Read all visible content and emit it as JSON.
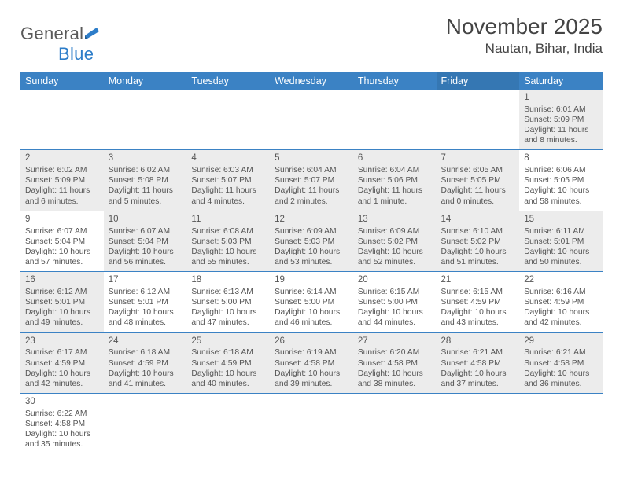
{
  "logo": {
    "name": "General",
    "nameBlue": "Blue"
  },
  "title": "November 2025",
  "location": "Nautan, Bihar, India",
  "colors": {
    "headerBg": "#3b82c4",
    "headerBgAlt": "#3577b3",
    "altCellBg": "#ececec",
    "rowBorder": "#3b82c4",
    "text": "#555555",
    "titleText": "#444444",
    "logoGray": "#5a5a5a",
    "logoBlue": "#2d7dc9"
  },
  "weekdays": [
    "Sunday",
    "Monday",
    "Tuesday",
    "Wednesday",
    "Thursday",
    "Friday",
    "Saturday"
  ],
  "weeks": [
    [
      {
        "empty": true
      },
      {
        "empty": true
      },
      {
        "empty": true
      },
      {
        "empty": true
      },
      {
        "empty": true
      },
      {
        "empty": true
      },
      {
        "day": "1",
        "alt": true,
        "sunrise": "Sunrise: 6:01 AM",
        "sunset": "Sunset: 5:09 PM",
        "daylight": "Daylight: 11 hours and 8 minutes."
      }
    ],
    [
      {
        "day": "2",
        "alt": true,
        "sunrise": "Sunrise: 6:02 AM",
        "sunset": "Sunset: 5:09 PM",
        "daylight": "Daylight: 11 hours and 6 minutes."
      },
      {
        "day": "3",
        "alt": true,
        "sunrise": "Sunrise: 6:02 AM",
        "sunset": "Sunset: 5:08 PM",
        "daylight": "Daylight: 11 hours and 5 minutes."
      },
      {
        "day": "4",
        "alt": true,
        "sunrise": "Sunrise: 6:03 AM",
        "sunset": "Sunset: 5:07 PM",
        "daylight": "Daylight: 11 hours and 4 minutes."
      },
      {
        "day": "5",
        "alt": true,
        "sunrise": "Sunrise: 6:04 AM",
        "sunset": "Sunset: 5:07 PM",
        "daylight": "Daylight: 11 hours and 2 minutes."
      },
      {
        "day": "6",
        "alt": true,
        "sunrise": "Sunrise: 6:04 AM",
        "sunset": "Sunset: 5:06 PM",
        "daylight": "Daylight: 11 hours and 1 minute."
      },
      {
        "day": "7",
        "alt": true,
        "sunrise": "Sunrise: 6:05 AM",
        "sunset": "Sunset: 5:05 PM",
        "daylight": "Daylight: 11 hours and 0 minutes."
      },
      {
        "day": "8",
        "alt": false,
        "sunrise": "Sunrise: 6:06 AM",
        "sunset": "Sunset: 5:05 PM",
        "daylight": "Daylight: 10 hours and 58 minutes."
      }
    ],
    [
      {
        "day": "9",
        "alt": false,
        "sunrise": "Sunrise: 6:07 AM",
        "sunset": "Sunset: 5:04 PM",
        "daylight": "Daylight: 10 hours and 57 minutes."
      },
      {
        "day": "10",
        "alt": true,
        "sunrise": "Sunrise: 6:07 AM",
        "sunset": "Sunset: 5:04 PM",
        "daylight": "Daylight: 10 hours and 56 minutes."
      },
      {
        "day": "11",
        "alt": true,
        "sunrise": "Sunrise: 6:08 AM",
        "sunset": "Sunset: 5:03 PM",
        "daylight": "Daylight: 10 hours and 55 minutes."
      },
      {
        "day": "12",
        "alt": true,
        "sunrise": "Sunrise: 6:09 AM",
        "sunset": "Sunset: 5:03 PM",
        "daylight": "Daylight: 10 hours and 53 minutes."
      },
      {
        "day": "13",
        "alt": true,
        "sunrise": "Sunrise: 6:09 AM",
        "sunset": "Sunset: 5:02 PM",
        "daylight": "Daylight: 10 hours and 52 minutes."
      },
      {
        "day": "14",
        "alt": true,
        "sunrise": "Sunrise: 6:10 AM",
        "sunset": "Sunset: 5:02 PM",
        "daylight": "Daylight: 10 hours and 51 minutes."
      },
      {
        "day": "15",
        "alt": true,
        "sunrise": "Sunrise: 6:11 AM",
        "sunset": "Sunset: 5:01 PM",
        "daylight": "Daylight: 10 hours and 50 minutes."
      }
    ],
    [
      {
        "day": "16",
        "alt": true,
        "sunrise": "Sunrise: 6:12 AM",
        "sunset": "Sunset: 5:01 PM",
        "daylight": "Daylight: 10 hours and 49 minutes."
      },
      {
        "day": "17",
        "alt": false,
        "sunrise": "Sunrise: 6:12 AM",
        "sunset": "Sunset: 5:01 PM",
        "daylight": "Daylight: 10 hours and 48 minutes."
      },
      {
        "day": "18",
        "alt": false,
        "sunrise": "Sunrise: 6:13 AM",
        "sunset": "Sunset: 5:00 PM",
        "daylight": "Daylight: 10 hours and 47 minutes."
      },
      {
        "day": "19",
        "alt": false,
        "sunrise": "Sunrise: 6:14 AM",
        "sunset": "Sunset: 5:00 PM",
        "daylight": "Daylight: 10 hours and 46 minutes."
      },
      {
        "day": "20",
        "alt": false,
        "sunrise": "Sunrise: 6:15 AM",
        "sunset": "Sunset: 5:00 PM",
        "daylight": "Daylight: 10 hours and 44 minutes."
      },
      {
        "day": "21",
        "alt": false,
        "sunrise": "Sunrise: 6:15 AM",
        "sunset": "Sunset: 4:59 PM",
        "daylight": "Daylight: 10 hours and 43 minutes."
      },
      {
        "day": "22",
        "alt": false,
        "sunrise": "Sunrise: 6:16 AM",
        "sunset": "Sunset: 4:59 PM",
        "daylight": "Daylight: 10 hours and 42 minutes."
      }
    ],
    [
      {
        "day": "23",
        "alt": true,
        "sunrise": "Sunrise: 6:17 AM",
        "sunset": "Sunset: 4:59 PM",
        "daylight": "Daylight: 10 hours and 42 minutes."
      },
      {
        "day": "24",
        "alt": true,
        "sunrise": "Sunrise: 6:18 AM",
        "sunset": "Sunset: 4:59 PM",
        "daylight": "Daylight: 10 hours and 41 minutes."
      },
      {
        "day": "25",
        "alt": true,
        "sunrise": "Sunrise: 6:18 AM",
        "sunset": "Sunset: 4:59 PM",
        "daylight": "Daylight: 10 hours and 40 minutes."
      },
      {
        "day": "26",
        "alt": true,
        "sunrise": "Sunrise: 6:19 AM",
        "sunset": "Sunset: 4:58 PM",
        "daylight": "Daylight: 10 hours and 39 minutes."
      },
      {
        "day": "27",
        "alt": true,
        "sunrise": "Sunrise: 6:20 AM",
        "sunset": "Sunset: 4:58 PM",
        "daylight": "Daylight: 10 hours and 38 minutes."
      },
      {
        "day": "28",
        "alt": true,
        "sunrise": "Sunrise: 6:21 AM",
        "sunset": "Sunset: 4:58 PM",
        "daylight": "Daylight: 10 hours and 37 minutes."
      },
      {
        "day": "29",
        "alt": true,
        "sunrise": "Sunrise: 6:21 AM",
        "sunset": "Sunset: 4:58 PM",
        "daylight": "Daylight: 10 hours and 36 minutes."
      }
    ],
    [
      {
        "day": "30",
        "alt": false,
        "sunrise": "Sunrise: 6:22 AM",
        "sunset": "Sunset: 4:58 PM",
        "daylight": "Daylight: 10 hours and 35 minutes."
      },
      {
        "empty": true
      },
      {
        "empty": true
      },
      {
        "empty": true
      },
      {
        "empty": true
      },
      {
        "empty": true
      },
      {
        "empty": true
      }
    ]
  ]
}
